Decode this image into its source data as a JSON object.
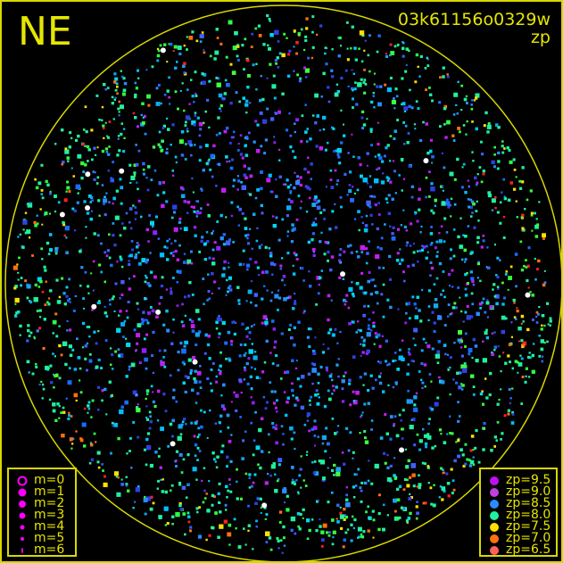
{
  "header": {
    "direction": "NE",
    "frame_id": "03k61156o0329w",
    "mode": "zp"
  },
  "chart_data": {
    "type": "scatter",
    "title": "03k61156o0329w",
    "subtitle": "zp",
    "grid": false,
    "legends": [
      {
        "placement": "bottom-left",
        "kind": "marker size by magnitude",
        "entries": [
          {
            "label": "m=0",
            "marker": "ring"
          },
          {
            "label": "m=1"
          },
          {
            "label": "m=2"
          },
          {
            "label": "m=3"
          },
          {
            "label": "m=4"
          },
          {
            "label": "m=5"
          },
          {
            "label": "m=6"
          }
        ],
        "color": "#ff00ff"
      },
      {
        "placement": "bottom-right",
        "kind": "marker color by zero point",
        "entries": [
          {
            "label": "zp=9.5",
            "color": "#c010f0"
          },
          {
            "label": "zp=9.0",
            "color": "#c040e0"
          },
          {
            "label": "zp=8.5",
            "color": "#2a8cff"
          },
          {
            "label": "zp=8.0",
            "color": "#20f0a0"
          },
          {
            "label": "zp=7.5",
            "color": "#ffe000"
          },
          {
            "label": "zp=7.0",
            "color": "#ff7010"
          },
          {
            "label": "zp=6.5",
            "color": "#ff6060"
          }
        ]
      }
    ]
  },
  "colors": {
    "frame": "#d8d800",
    "background": "#000000"
  }
}
